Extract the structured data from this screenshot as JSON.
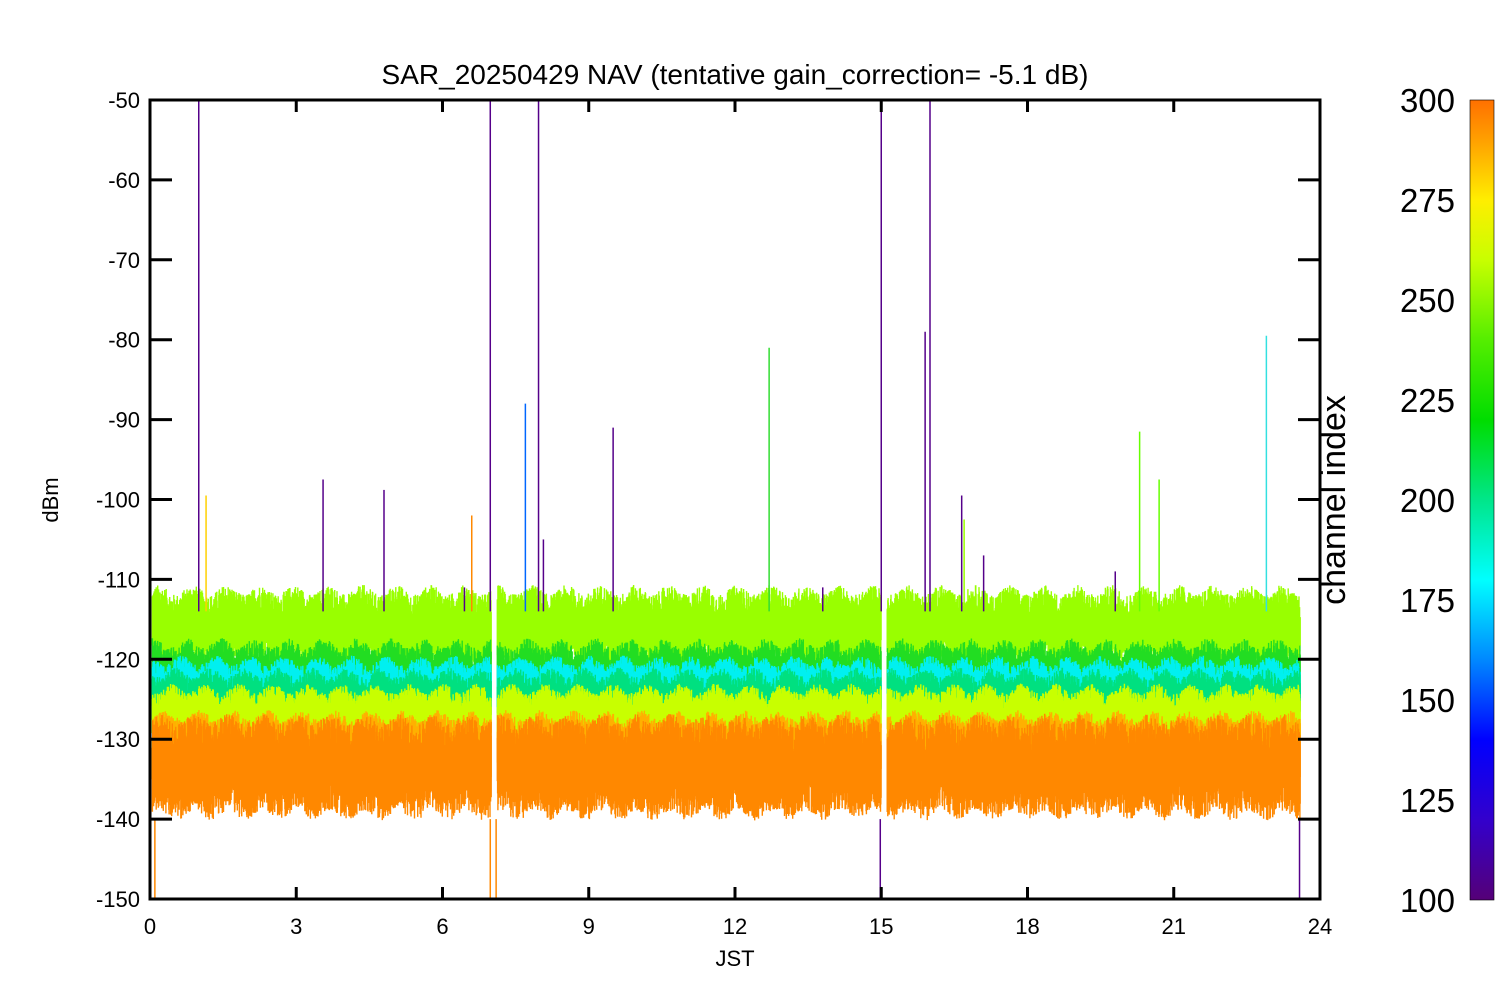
{
  "chart_data": {
    "type": "line",
    "title": "SAR_20250429 NAV (tentative gain_correction= -5.1 dB)",
    "xlabel": "JST",
    "ylabel": "dBm",
    "xlim": [
      0,
      24
    ],
    "ylim": [
      -150,
      -50
    ],
    "x_ticks": [
      0,
      3,
      6,
      9,
      12,
      15,
      18,
      21,
      24
    ],
    "y_ticks": [
      -50,
      -60,
      -70,
      -80,
      -90,
      -100,
      -110,
      -120,
      -130,
      -140,
      -150
    ],
    "data_gaps_hours": [
      [
        7.0,
        7.12
      ],
      [
        15.0,
        15.12
      ]
    ],
    "data_end_hour": 23.6,
    "bands": [
      {
        "name": "channel ~255 band",
        "channel": 255,
        "color": "#99ff00",
        "center_dBm": -116,
        "spread_dBm": 3.5
      },
      {
        "name": "channel ~240 band",
        "channel": 240,
        "color": "#22dd22",
        "center_dBm": -122,
        "spread_dBm": 3
      },
      {
        "name": "channel ~180 band",
        "channel": 180,
        "color": "#00f0f0",
        "center_dBm": -123.5,
        "spread_dBm": 2.5
      },
      {
        "name": "channel ~215 band",
        "channel": 215,
        "color": "#00e080",
        "center_dBm": -125,
        "spread_dBm": 2.5
      },
      {
        "name": "channel ~260 band",
        "channel": 260,
        "color": "#c8ff00",
        "center_dBm": -127,
        "spread_dBm": 2.5
      },
      {
        "name": "channel ~285 band",
        "channel": 285,
        "color": "#ffb000",
        "center_dBm": -131,
        "spread_dBm": 3
      },
      {
        "name": "channel ~295 band",
        "channel": 295,
        "color": "#ff8800",
        "center_dBm": -133.5,
        "spread_dBm": 4.5
      }
    ],
    "spikes": [
      {
        "x": 1.0,
        "y": -50,
        "color": "#55008a"
      },
      {
        "x": 1.15,
        "y": -99.5,
        "color": "#ffd000"
      },
      {
        "x": 3.55,
        "y": -97.5,
        "color": "#55008a"
      },
      {
        "x": 4.8,
        "y": -98.8,
        "color": "#55008a"
      },
      {
        "x": 6.45,
        "y": -111,
        "color": "#55008a"
      },
      {
        "x": 6.6,
        "y": -102,
        "color": "#ff8800"
      },
      {
        "x": 6.98,
        "y": -50,
        "color": "#55008a"
      },
      {
        "x": 7.7,
        "y": -88,
        "color": "#0066ff"
      },
      {
        "x": 7.97,
        "y": -50,
        "color": "#55008a"
      },
      {
        "x": 8.07,
        "y": -105,
        "color": "#55008a"
      },
      {
        "x": 9.5,
        "y": -91,
        "color": "#55008a"
      },
      {
        "x": 12.7,
        "y": -81,
        "color": "#33dd33"
      },
      {
        "x": 13.8,
        "y": -111,
        "color": "#55008a"
      },
      {
        "x": 15.0,
        "y": -50,
        "color": "#55008a"
      },
      {
        "x": 15.9,
        "y": -79,
        "color": "#55008a"
      },
      {
        "x": 16.0,
        "y": -50,
        "color": "#55008a"
      },
      {
        "x": 16.65,
        "y": -99.5,
        "color": "#55008a"
      },
      {
        "x": 16.7,
        "y": -102.5,
        "color": "#99ff00"
      },
      {
        "x": 17.1,
        "y": -107,
        "color": "#55008a"
      },
      {
        "x": 19.8,
        "y": -109,
        "color": "#55008a"
      },
      {
        "x": 20.3,
        "y": -91.5,
        "color": "#66ff00"
      },
      {
        "x": 20.7,
        "y": -97.5,
        "color": "#66ff00"
      },
      {
        "x": 22.9,
        "y": -79.5,
        "color": "#33e0e0"
      }
    ]
  },
  "colorbar": {
    "label": "channel index",
    "range": [
      100,
      300
    ],
    "ticks": [
      "300",
      "275",
      "250",
      "225",
      "200",
      "175",
      "150",
      "125",
      "100"
    ],
    "stops": [
      {
        "v": 100,
        "color": "#550077"
      },
      {
        "v": 120,
        "color": "#3300cc"
      },
      {
        "v": 140,
        "color": "#0000ff"
      },
      {
        "v": 160,
        "color": "#0088ff"
      },
      {
        "v": 180,
        "color": "#00ffff"
      },
      {
        "v": 200,
        "color": "#00e68a"
      },
      {
        "v": 220,
        "color": "#00dd00"
      },
      {
        "v": 240,
        "color": "#55ee00"
      },
      {
        "v": 260,
        "color": "#c8ff00"
      },
      {
        "v": 275,
        "color": "#ffee00"
      },
      {
        "v": 290,
        "color": "#ffa000"
      },
      {
        "v": 300,
        "color": "#ff7000"
      }
    ]
  }
}
